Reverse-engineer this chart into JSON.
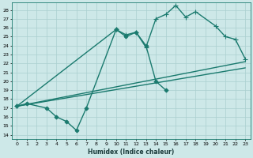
{
  "title": "",
  "xlabel": "Humidex (Indice chaleur)",
  "bg_color": "#cde8e8",
  "line_color": "#1a7a6e",
  "grid_color": "#aacfcf",
  "xlim": [
    -0.5,
    23.5
  ],
  "ylim": [
    13.5,
    28.8
  ],
  "xticks": [
    0,
    1,
    2,
    3,
    4,
    5,
    6,
    7,
    8,
    9,
    10,
    11,
    12,
    13,
    14,
    15,
    16,
    17,
    18,
    19,
    20,
    21,
    22,
    23
  ],
  "yticks": [
    14,
    15,
    16,
    17,
    18,
    19,
    20,
    21,
    22,
    23,
    24,
    25,
    26,
    27,
    28
  ],
  "series": [
    {
      "x": [
        0,
        1,
        3,
        4,
        5,
        6,
        7,
        10,
        11,
        12,
        13,
        14,
        15
      ],
      "y": [
        17.2,
        17.5,
        17.0,
        16.0,
        15.5,
        14.5,
        17.0,
        25.8,
        25.0,
        25.5,
        24.0,
        20.0,
        19.0
      ],
      "marker": "D",
      "markersize": 2.5,
      "linewidth": 1.0
    },
    {
      "x": [
        0,
        10,
        11,
        12,
        13,
        14,
        15,
        16,
        17,
        18,
        20,
        21,
        22,
        23
      ],
      "y": [
        17.2,
        25.8,
        25.2,
        25.5,
        23.8,
        27.0,
        27.5,
        28.5,
        27.2,
        27.8,
        26.2,
        25.0,
        24.7,
        22.5
      ],
      "marker": "+",
      "markersize": 4,
      "linewidth": 1.0
    },
    {
      "x": [
        0,
        23
      ],
      "y": [
        17.2,
        21.5
      ],
      "marker": null,
      "markersize": 0,
      "linewidth": 1.0
    },
    {
      "x": [
        0,
        23
      ],
      "y": [
        17.2,
        22.2
      ],
      "marker": null,
      "markersize": 0,
      "linewidth": 1.0
    }
  ]
}
